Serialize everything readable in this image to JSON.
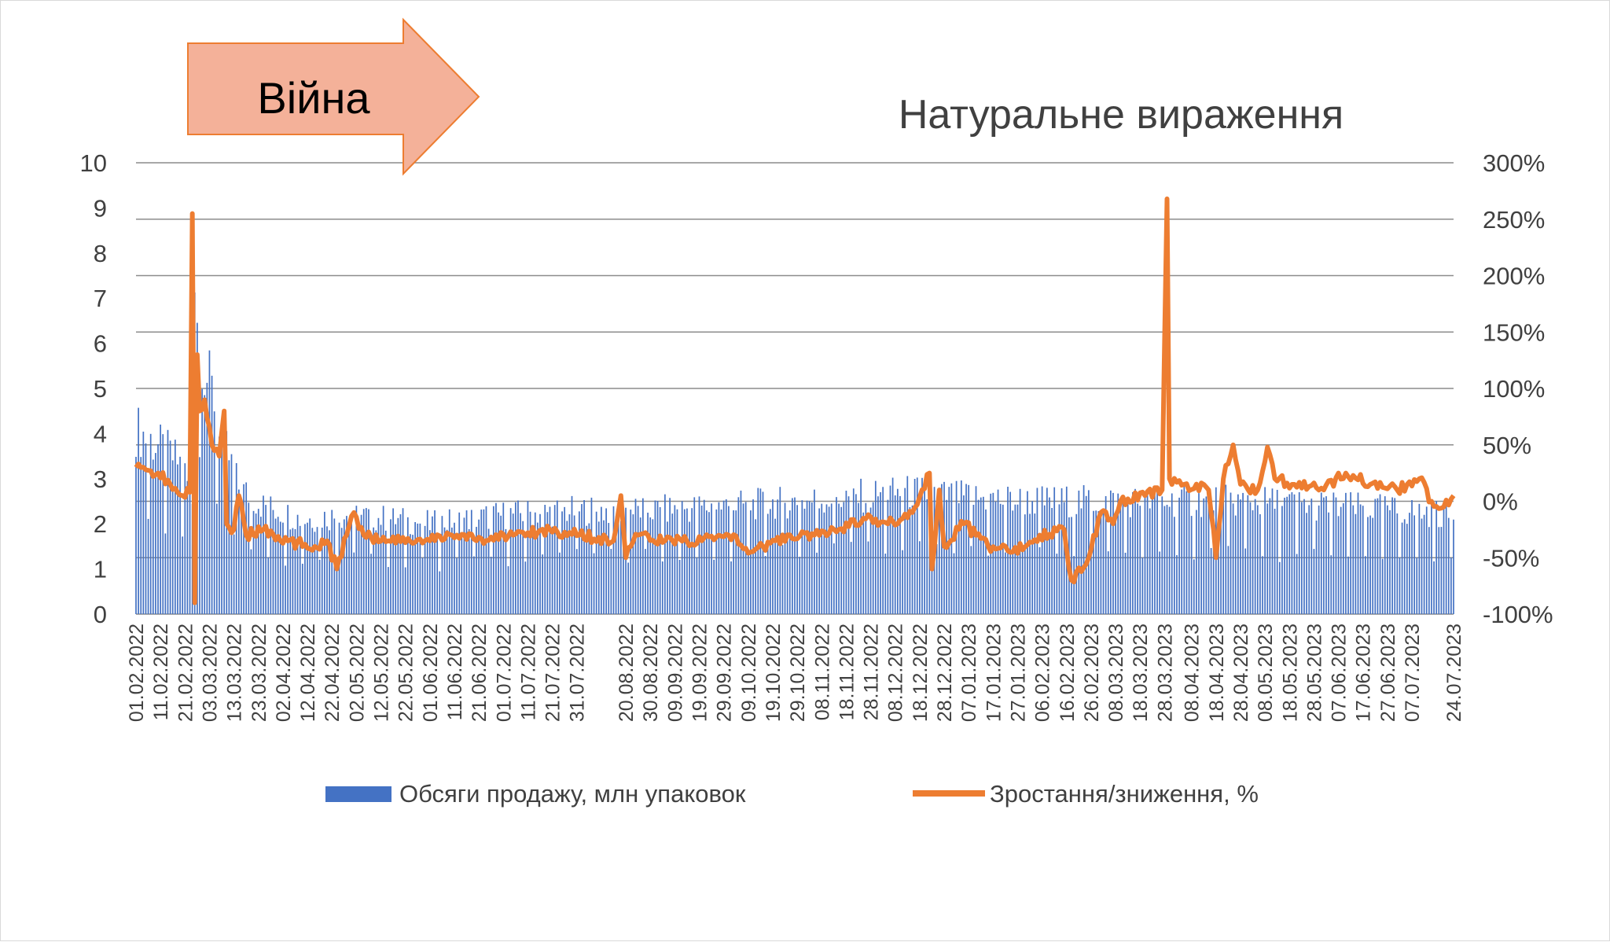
{
  "chart_data": {
    "type": "bar+line",
    "title": "Натуральне вираження",
    "annotation": "Війна",
    "colors": {
      "bars": "#4472c4",
      "line": "#ed7d31",
      "arrow_fill": "#f4b199",
      "arrow_stroke": "#ed7d31",
      "grid": "#8c8c8c"
    },
    "y_left": {
      "min": 0,
      "max": 10,
      "ticks": [
        "0",
        "1",
        "2",
        "3",
        "4",
        "5",
        "6",
        "7",
        "8",
        "9",
        "10"
      ]
    },
    "y_right": {
      "min": -100,
      "max": 300,
      "ticks": [
        "-100%",
        "-50%",
        "0%",
        "50%",
        "100%",
        "150%",
        "200%",
        "250%",
        "300%"
      ]
    },
    "x_tick_labels": [
      "01.02.2022",
      "11.02.2022",
      "21.02.2022",
      "03.03.2022",
      "13.03.2022",
      "23.03.2022",
      "02.04.2022",
      "12.04.2022",
      "22.04.2022",
      "02.05.2022",
      "12.05.2022",
      "22.05.2022",
      "01.06.2022",
      "11.06.2022",
      "21.06.2022",
      "01.07.2022",
      "11.07.2022",
      "21.07.2022",
      "31.07.2022",
      "20.08.2022",
      "30.08.2022",
      "09.09.2022",
      "19.09.2022",
      "29.09.2022",
      "09.10.2022",
      "19.10.2022",
      "29.10.2022",
      "08.11.2022",
      "18.11.2022",
      "28.11.2022",
      "08.12.2022",
      "18.12.2022",
      "28.12.2022",
      "07.01.2023",
      "17.01.2023",
      "27.01.2023",
      "06.02.2023",
      "16.02.2023",
      "26.02.2023",
      "08.03.2023",
      "18.03.2023",
      "28.03.2023",
      "08.04.2023",
      "18.04.2023",
      "28.04.2023",
      "08.05.2023",
      "18.05.2023",
      "28.05.2023",
      "07.06.2023",
      "17.06.2023",
      "27.06.2023",
      "07.07.2023",
      "24.07.2023"
    ],
    "series": [
      {
        "name": "Обсяги продажу, млн упаковок",
        "type": "bar",
        "axis": "left",
        "x_range": [
          "01.02.2022",
          "24.07.2023"
        ],
        "daily_profile_keypoints": [
          [
            "01.02.2022",
            4.1
          ],
          [
            "20.02.2022",
            3.3
          ],
          [
            "24.02.2022",
            2.5
          ],
          [
            "25.02.2022",
            8.0
          ],
          [
            "26.02.2022",
            6.8
          ],
          [
            "01.03.2022",
            5.4
          ],
          [
            "05.03.2022",
            4.8
          ],
          [
            "10.03.2022",
            3.6
          ],
          [
            "15.03.2022",
            2.8
          ],
          [
            "25.03.2022",
            2.4
          ],
          [
            "10.04.2022",
            2.1
          ],
          [
            "01.05.2022",
            2.2
          ],
          [
            "01.06.2022",
            2.0
          ],
          [
            "01.07.2022",
            2.2
          ],
          [
            "01.08.2022",
            2.3
          ],
          [
            "01.09.2022",
            2.3
          ],
          [
            "01.10.2022",
            2.4
          ],
          [
            "01.11.2022",
            2.5
          ],
          [
            "20.11.2022",
            2.6
          ],
          [
            "15.12.2022",
            2.7
          ],
          [
            "01.01.2023",
            2.6
          ],
          [
            "01.02.2023",
            2.5
          ],
          [
            "01.03.2023",
            2.5
          ],
          [
            "01.04.2023",
            2.5
          ],
          [
            "01.05.2023",
            2.5
          ],
          [
            "01.06.2023",
            2.4
          ],
          [
            "01.07.2023",
            2.3
          ],
          [
            "24.07.2023",
            2.2
          ]
        ]
      },
      {
        "name": "Зростання/зниження, %",
        "type": "line",
        "axis": "right",
        "keypoints": [
          [
            "01.02.2022",
            30
          ],
          [
            "05.02.2022",
            28
          ],
          [
            "10.02.2022",
            25
          ],
          [
            "15.02.2022",
            15
          ],
          [
            "20.02.2022",
            5
          ],
          [
            "23.02.2022",
            8
          ],
          [
            "24.02.2022",
            255
          ],
          [
            "25.02.2022",
            -90
          ],
          [
            "26.02.2022",
            130
          ],
          [
            "27.02.2022",
            80
          ],
          [
            "01.03.2022",
            90
          ],
          [
            "04.03.2022",
            50
          ],
          [
            "07.03.2022",
            40
          ],
          [
            "09.03.2022",
            80
          ],
          [
            "10.03.2022",
            -20
          ],
          [
            "13.03.2022",
            -25
          ],
          [
            "15.03.2022",
            5
          ],
          [
            "18.03.2022",
            -30
          ],
          [
            "25.03.2022",
            -25
          ],
          [
            "01.04.2022",
            -35
          ],
          [
            "15.04.2022",
            -40
          ],
          [
            "20.04.2022",
            -35
          ],
          [
            "24.04.2022",
            -60
          ],
          [
            "28.04.2022",
            -30
          ],
          [
            "01.05.2022",
            -10
          ],
          [
            "05.05.2022",
            -30
          ],
          [
            "15.05.2022",
            -35
          ],
          [
            "01.06.2022",
            -35
          ],
          [
            "10.06.2022",
            -30
          ],
          [
            "20.06.2022",
            -35
          ],
          [
            "05.07.2022",
            -30
          ],
          [
            "20.07.2022",
            -25
          ],
          [
            "01.08.2022",
            -30
          ],
          [
            "15.08.2022",
            -35
          ],
          [
            "18.08.2022",
            5
          ],
          [
            "20.08.2022",
            -50
          ],
          [
            "25.08.2022",
            -30
          ],
          [
            "05.09.2022",
            -35
          ],
          [
            "20.09.2022",
            -35
          ],
          [
            "01.10.2022",
            -30
          ],
          [
            "10.10.2022",
            -45
          ],
          [
            "20.10.2022",
            -35
          ],
          [
            "05.11.2022",
            -30
          ],
          [
            "15.11.2022",
            -25
          ],
          [
            "25.11.2022",
            -15
          ],
          [
            "05.12.2022",
            -20
          ],
          [
            "15.12.2022",
            -10
          ],
          [
            "22.12.2022",
            25
          ],
          [
            "23.12.2022",
            -60
          ],
          [
            "26.12.2022",
            10
          ],
          [
            "28.12.2022",
            -40
          ],
          [
            "05.01.2023",
            -20
          ],
          [
            "15.01.2023",
            -40
          ],
          [
            "25.01.2023",
            -45
          ],
          [
            "05.02.2023",
            -30
          ],
          [
            "15.02.2023",
            -25
          ],
          [
            "18.02.2023",
            -70
          ],
          [
            "25.02.2023",
            -50
          ],
          [
            "02.03.2023",
            -10
          ],
          [
            "07.03.2023",
            -20
          ],
          [
            "10.03.2023",
            0
          ],
          [
            "20.03.2023",
            5
          ],
          [
            "27.03.2023",
            10
          ],
          [
            "29.03.2023",
            268
          ],
          [
            "30.03.2023",
            20
          ],
          [
            "05.04.2023",
            15
          ],
          [
            "15.04.2023",
            10
          ],
          [
            "18.04.2023",
            -50
          ],
          [
            "21.04.2023",
            20
          ],
          [
            "25.04.2023",
            50
          ],
          [
            "28.04.2023",
            15
          ],
          [
            "05.05.2023",
            10
          ],
          [
            "09.05.2023",
            48
          ],
          [
            "12.05.2023",
            20
          ],
          [
            "20.05.2023",
            15
          ],
          [
            "01.06.2023",
            10
          ],
          [
            "10.06.2023",
            25
          ],
          [
            "20.06.2023",
            15
          ],
          [
            "01.07.2023",
            10
          ],
          [
            "10.07.2023",
            20
          ],
          [
            "15.07.2023",
            0
          ],
          [
            "20.07.2023",
            -5
          ],
          [
            "24.07.2023",
            5
          ]
        ]
      }
    ],
    "legend_position": "bottom",
    "grid": true
  }
}
